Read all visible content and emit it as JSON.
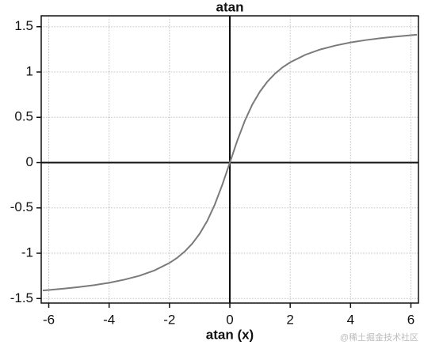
{
  "chart_data": {
    "type": "line",
    "title": "atan",
    "x_label": "atan (x)",
    "watermark": "@稀土掘金技术社区",
    "x": [
      -6.2,
      -6,
      -5.5,
      -5,
      -4.5,
      -4,
      -3.5,
      -3,
      -2.5,
      -2,
      -1.75,
      -1.5,
      -1.25,
      -1,
      -0.75,
      -0.5,
      -0.25,
      0,
      0.25,
      0.5,
      0.75,
      1,
      1.25,
      1.5,
      1.75,
      2,
      2.5,
      3,
      3.5,
      4,
      4.5,
      5,
      5.5,
      6,
      6.2
    ],
    "series": [
      {
        "color": "#7a7a7a",
        "values": [
          -1.411,
          -1.406,
          -1.391,
          -1.373,
          -1.352,
          -1.326,
          -1.292,
          -1.249,
          -1.19,
          -1.107,
          -1.052,
          -0.983,
          -0.896,
          -0.785,
          -0.644,
          -0.464,
          -0.245,
          0,
          0.245,
          0.464,
          0.644,
          0.785,
          0.896,
          0.983,
          1.052,
          1.107,
          1.19,
          1.249,
          1.292,
          1.326,
          1.352,
          1.373,
          1.391,
          1.406,
          1.411
        ]
      }
    ],
    "xlim": [
      -6.25,
      6.25
    ],
    "ylim": [
      -1.55,
      1.62
    ],
    "xticks": [
      -6,
      -4,
      -2,
      0,
      2,
      4,
      6
    ],
    "yticks": [
      -1.5,
      -1,
      -0.5,
      0,
      0.5,
      1,
      1.5
    ],
    "grid": true
  }
}
